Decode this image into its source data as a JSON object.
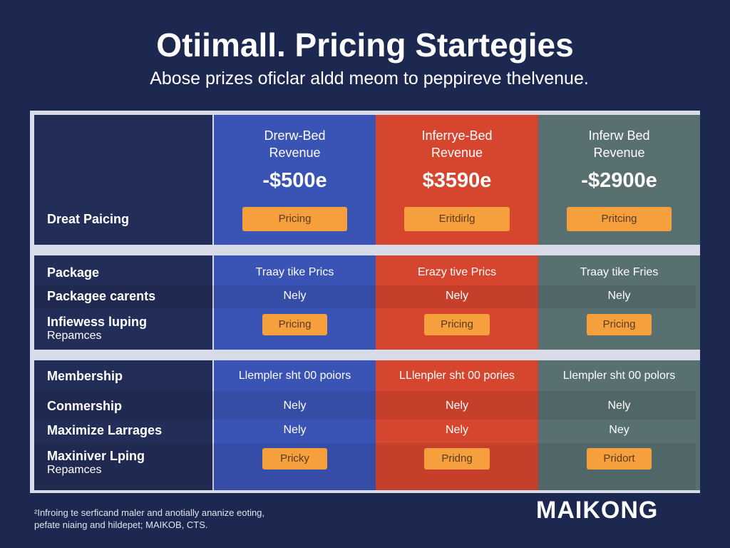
{
  "header": {
    "title": "Otiimall. Pricing Startegies",
    "subtitle": "Abose prizes oficlar aldd meom to peppireve thelvenue."
  },
  "top": {
    "row_label": "Dreat Paicing",
    "columns": [
      {
        "heading": [
          "Drerw-Bed",
          "Revenue"
        ],
        "price": "-$500e",
        "button": "Pricing"
      },
      {
        "heading": [
          "Inferrye-Bed",
          "Revenue"
        ],
        "price": "$3590e",
        "button": "Eritdirlg"
      },
      {
        "heading": [
          "Inferw Bed",
          "Revenue"
        ],
        "price": "-$2900e",
        "button": "Pritcing"
      }
    ]
  },
  "sections": [
    {
      "rows": [
        {
          "label": [
            "Package"
          ],
          "cells": [
            "Traay tike Prics",
            "Erazy tive Prics",
            "Traay tike Fries"
          ]
        },
        {
          "label": [
            "Packagee carents"
          ],
          "cells": [
            "Nely",
            "Nely",
            "Nely"
          ]
        },
        {
          "label": [
            "Infiewess luping",
            "Repamces"
          ],
          "buttons": [
            "Pricing",
            "Pricing",
            "Pricing"
          ]
        }
      ]
    },
    {
      "rows": [
        {
          "label": [
            "Membership"
          ],
          "cells": [
            "Llempler sht 00 poiors",
            "LLlenpler sht 00 pories",
            "Llempler sht 00 polors"
          ]
        },
        {
          "label": [
            "Conmership"
          ],
          "cells": [
            "Nely",
            "Nely",
            "Nely"
          ]
        },
        {
          "label": [
            "Maximize Larrages"
          ],
          "cells": [
            "Nely",
            "Nely",
            "Ney"
          ]
        },
        {
          "label": [
            "Maxiniver Lping",
            "Repamces"
          ],
          "buttons": [
            "Pricky",
            "Pridng",
            "Pridort"
          ]
        }
      ]
    }
  ],
  "footer": {
    "note": [
      "²Infroing te serficand maler and anotially ananize eoting,",
      "pefate niaing and hildepet; MAIKOB, CTS."
    ],
    "brand": "MAIKONG"
  }
}
